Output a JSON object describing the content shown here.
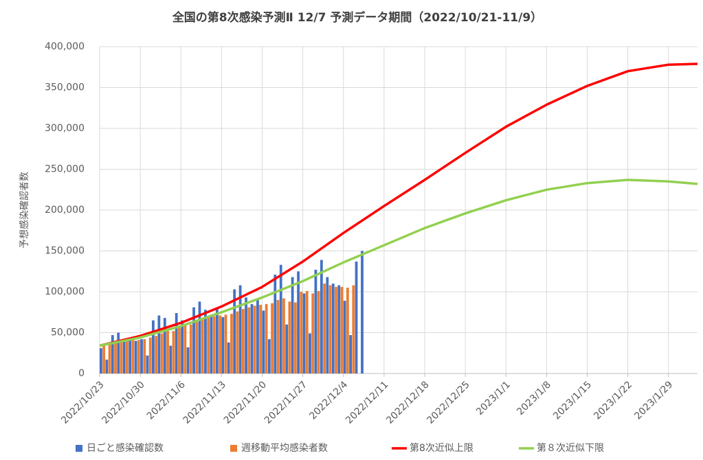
{
  "chart_data": {
    "type": "combo",
    "title": "全国の第8次感染予測Ⅱ 12/7 予測データ期間（2022/10/21-11/9）",
    "y_label": "予想感染確認者数",
    "xlim": [
      "2022/10/23",
      "2023/2/3"
    ],
    "xticks": [
      "2022/10/23",
      "2022/10/30",
      "2022/11/6",
      "2022/11/13",
      "2022/11/20",
      "2022/11/27",
      "2022/12/4",
      "2022/12/11",
      "2022/12/18",
      "2022/12/25",
      "2023/1/1",
      "2023/1/8",
      "2023/1/15",
      "2023/1/22",
      "2023/1/29"
    ],
    "ylim": [
      0,
      400000
    ],
    "yticks": [
      0,
      {
        "value": 50000,
        "label": "50,000"
      },
      {
        "value": 100000,
        "label": "100,000"
      },
      {
        "value": 150000,
        "label": "150,000"
      },
      {
        "value": 200000,
        "label": "200,000"
      },
      {
        "value": 250000,
        "label": "250,000"
      },
      {
        "value": 300000,
        "label": "300,000"
      },
      {
        "value": 350000,
        "label": "350,000"
      },
      {
        "value": 400000,
        "label": "400,000"
      }
    ],
    "grid": true,
    "legend": "bottom",
    "series": [
      {
        "name": "日ごと感染確認数",
        "type": "bar",
        "color": "#4472c4",
        "x": [
          "2022/10/23",
          "2022/10/24",
          "2022/10/25",
          "2022/10/26",
          "2022/10/27",
          "2022/10/28",
          "2022/10/29",
          "2022/10/30",
          "2022/10/31",
          "2022/11/1",
          "2022/11/2",
          "2022/11/3",
          "2022/11/4",
          "2022/11/5",
          "2022/11/6",
          "2022/11/7",
          "2022/11/8",
          "2022/11/9",
          "2022/11/10",
          "2022/11/11",
          "2022/11/12",
          "2022/11/13",
          "2022/11/14",
          "2022/11/15",
          "2022/11/16",
          "2022/11/17",
          "2022/11/18",
          "2022/11/19",
          "2022/11/20",
          "2022/11/21",
          "2022/11/22",
          "2022/11/23",
          "2022/11/24",
          "2022/11/25",
          "2022/11/26",
          "2022/11/27",
          "2022/11/28",
          "2022/11/29",
          "2022/11/30",
          "2022/12/1",
          "2022/12/2",
          "2022/12/3",
          "2022/12/4",
          "2022/12/5",
          "2022/12/6",
          "2022/12/7"
        ],
        "values": [
          31000,
          17000,
          47000,
          50000,
          40000,
          41000,
          40000,
          42000,
          22000,
          65000,
          71000,
          68000,
          34000,
          74000,
          65000,
          32000,
          81000,
          88000,
          78000,
          72000,
          80000,
          69000,
          38000,
          103000,
          108000,
          93000,
          85000,
          90000,
          77000,
          42000,
          121000,
          133000,
          60000,
          118000,
          125000,
          98000,
          49000,
          127000,
          139000,
          118000,
          110000,
          108000,
          89000,
          47000,
          137000,
          150000
        ]
      },
      {
        "name": "週移動平均感染者数",
        "type": "bar",
        "color": "#ed7d31",
        "x": [
          "2022/10/23",
          "2022/10/24",
          "2022/10/25",
          "2022/10/26",
          "2022/10/27",
          "2022/10/28",
          "2022/10/29",
          "2022/10/30",
          "2022/10/31",
          "2022/11/1",
          "2022/11/2",
          "2022/11/3",
          "2022/11/4",
          "2022/11/5",
          "2022/11/6",
          "2022/11/7",
          "2022/11/8",
          "2022/11/9",
          "2022/11/10",
          "2022/11/11",
          "2022/11/12",
          "2022/11/13",
          "2022/11/14",
          "2022/11/15",
          "2022/11/16",
          "2022/11/17",
          "2022/11/18",
          "2022/11/19",
          "2022/11/20",
          "2022/11/21",
          "2022/11/22",
          "2022/11/23",
          "2022/11/24",
          "2022/11/25",
          "2022/11/26",
          "2022/11/27",
          "2022/11/28",
          "2022/11/29",
          "2022/11/30",
          "2022/12/1",
          "2022/12/2",
          "2022/12/3",
          "2022/12/4",
          "2022/12/5"
        ],
        "values": [
          35000,
          36000,
          38000,
          39000,
          40000,
          41000,
          41000,
          42000,
          44000,
          46000,
          49000,
          52000,
          52000,
          56000,
          59000,
          60000,
          63000,
          66000,
          68000,
          70000,
          71000,
          72000,
          73000,
          76000,
          79000,
          81000,
          83000,
          84000,
          85000,
          86000,
          90000,
          92000,
          88000,
          87000,
          100000,
          101000,
          98000,
          101000,
          110000,
          108000,
          106000,
          106000,
          105000,
          108000
        ]
      },
      {
        "name": "第8次近似上限",
        "type": "line",
        "color": "#ff0000",
        "x": [
          "2022/10/23",
          "2022/10/30",
          "2022/11/6",
          "2022/11/13",
          "2022/11/20",
          "2022/11/27",
          "2022/12/4",
          "2022/12/11",
          "2022/12/18",
          "2022/12/25",
          "2023/1/1",
          "2023/1/8",
          "2023/1/15",
          "2023/1/22",
          "2023/1/29",
          "2023/2/3"
        ],
        "values": [
          34000,
          46000,
          62000,
          82000,
          106000,
          137000,
          172000,
          205000,
          237000,
          270000,
          302000,
          329000,
          352000,
          370000,
          378000,
          379000
        ]
      },
      {
        "name": "第８次近似下限",
        "type": "line",
        "color": "#92d050",
        "x": [
          "2022/10/23",
          "2022/10/30",
          "2022/11/6",
          "2022/11/13",
          "2022/11/20",
          "2022/11/27",
          "2022/12/4",
          "2022/12/11",
          "2022/12/18",
          "2022/12/25",
          "2023/1/1",
          "2023/1/8",
          "2023/1/15",
          "2023/1/22",
          "2023/1/29",
          "2023/2/3"
        ],
        "values": [
          34000,
          44000,
          58000,
          75000,
          93000,
          113000,
          136000,
          157000,
          178000,
          196000,
          212000,
          225000,
          233000,
          237000,
          235000,
          232000
        ]
      }
    ]
  }
}
